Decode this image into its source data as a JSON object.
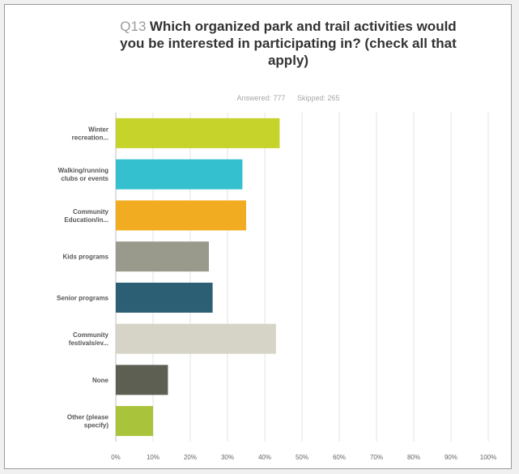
{
  "question": {
    "number": "Q13",
    "text": "Which organized park and trail activities would you be interested in participating in? (check all that apply)"
  },
  "stats": {
    "answered": "Answered: 777",
    "skipped": "Skipped: 265"
  },
  "chart_data": {
    "type": "bar",
    "orientation": "horizontal",
    "categories": [
      "Winter recreation...",
      "Walking/running clubs or events",
      "Community Education/in...",
      "Kids programs",
      "Senior programs",
      "Community festivals/ev...",
      "None",
      "Other (please specify)"
    ],
    "values": [
      44,
      34,
      35,
      25,
      26,
      43,
      14,
      10
    ],
    "colors": [
      "#c5d32b",
      "#34c0cf",
      "#f2ac22",
      "#9a9a8c",
      "#2c5f73",
      "#d6d4c7",
      "#5c5f52",
      "#a9c43b"
    ],
    "xlim": [
      0,
      100
    ],
    "x_ticks": [
      "0%",
      "10%",
      "20%",
      "30%",
      "40%",
      "50%",
      "60%",
      "70%",
      "80%",
      "90%",
      "100%"
    ],
    "grid": true
  }
}
